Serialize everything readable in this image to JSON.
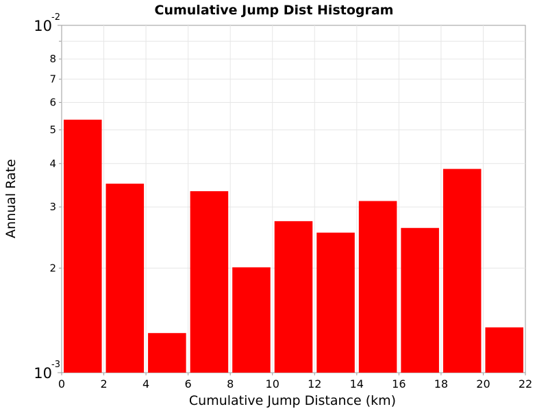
{
  "chart_data": {
    "type": "bar",
    "title": "Cumulative Jump Dist Histogram",
    "xlabel": "Cumulative Jump Distance (km)",
    "ylabel": "Annual Rate",
    "xlim": [
      0,
      22
    ],
    "ylim": [
      0.001,
      0.01
    ],
    "yscale": "log",
    "grid": true,
    "bar_color": "#ff0000",
    "bin_width": 2,
    "x": [
      1,
      3,
      5,
      7,
      9,
      11,
      13,
      15,
      17,
      19,
      21
    ],
    "values": [
      0.00535,
      0.0035,
      0.0013,
      0.00333,
      0.00201,
      0.00273,
      0.00253,
      0.00312,
      0.00261,
      0.00386,
      0.00135
    ],
    "x_ticks": [
      "0",
      "2",
      "4",
      "6",
      "8",
      "10",
      "12",
      "14",
      "16",
      "18",
      "20",
      "22"
    ],
    "y_major_ticks": [
      {
        "value": 0.001,
        "base": "10",
        "exp": "-3"
      },
      {
        "value": 0.01,
        "base": "10",
        "exp": "-2"
      }
    ],
    "y_minor_ticks": [
      {
        "value": 0.002,
        "label": "2"
      },
      {
        "value": 0.003,
        "label": "3"
      },
      {
        "value": 0.004,
        "label": "4"
      },
      {
        "value": 0.005,
        "label": "5"
      },
      {
        "value": 0.006,
        "label": "6"
      },
      {
        "value": 0.007,
        "label": "7"
      },
      {
        "value": 0.008,
        "label": "8"
      },
      {
        "value": 0.009,
        "label": ""
      }
    ]
  }
}
